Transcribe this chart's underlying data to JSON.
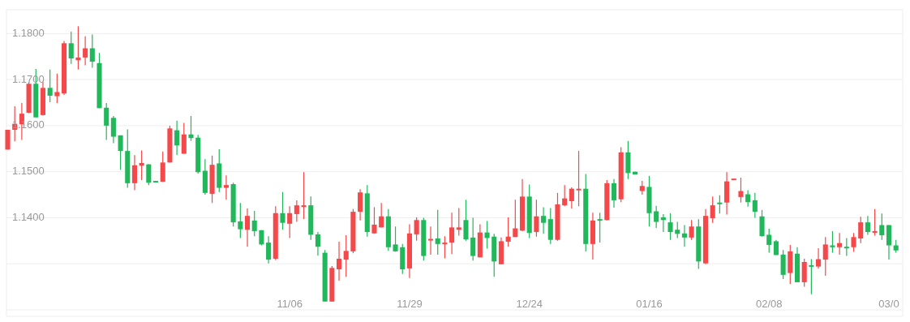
{
  "chart_data": {
    "type": "candlestick",
    "categories": [
      null,
      null,
      null,
      null,
      null,
      null,
      null,
      null,
      null,
      null,
      null,
      null,
      null,
      null,
      null,
      null,
      null,
      null,
      null,
      null,
      null,
      null,
      null,
      null,
      null,
      null,
      null,
      null,
      null,
      null,
      null,
      null,
      null,
      null,
      null,
      null,
      null,
      null,
      null,
      null,
      "11/06",
      null,
      null,
      null,
      null,
      null,
      null,
      null,
      null,
      null,
      null,
      null,
      null,
      null,
      null,
      null,
      null,
      "11/29",
      null,
      null,
      null,
      null,
      null,
      null,
      null,
      null,
      null,
      null,
      null,
      null,
      null,
      null,
      null,
      null,
      "12/24",
      null,
      null,
      null,
      null,
      null,
      null,
      null,
      null,
      null,
      null,
      null,
      null,
      null,
      null,
      null,
      null,
      "01/16",
      null,
      null,
      null,
      null,
      null,
      null,
      null,
      null,
      null,
      null,
      null,
      null,
      null,
      null,
      null,
      null,
      "02/08",
      null,
      null,
      null,
      null,
      null,
      null,
      null,
      null,
      null,
      null,
      null,
      null,
      null,
      null,
      null,
      null,
      "03/0",
      null
    ],
    "ohlc": [
      [
        1.1548,
        1.1591,
        1.1548,
        1.1591
      ],
      [
        1.1591,
        1.1642,
        1.1566,
        1.1604
      ],
      [
        1.1603,
        1.1649,
        1.1569,
        1.1626
      ],
      [
        1.1628,
        1.1694,
        1.1627,
        1.1691
      ],
      [
        1.1691,
        1.1723,
        1.1618,
        1.1618
      ],
      [
        1.1623,
        1.1696,
        1.1622,
        1.1682
      ],
      [
        1.1682,
        1.1722,
        1.1651,
        1.1665
      ],
      [
        1.1664,
        1.1713,
        1.1649,
        1.1673
      ],
      [
        1.167,
        1.1784,
        1.1667,
        1.1779
      ],
      [
        1.1779,
        1.1804,
        1.1734,
        1.1746
      ],
      [
        1.1742,
        1.1816,
        1.1722,
        1.1748
      ],
      [
        1.1748,
        1.1794,
        1.1731,
        1.1768
      ],
      [
        1.1768,
        1.1798,
        1.1726,
        1.1739
      ],
      [
        1.1736,
        1.1758,
        1.1638,
        1.1638
      ],
      [
        1.1639,
        1.1649,
        1.1569,
        1.16
      ],
      [
        1.1617,
        1.1621,
        1.1562,
        1.1576
      ],
      [
        1.1579,
        1.1579,
        1.1504,
        1.1545
      ],
      [
        1.1545,
        1.1592,
        1.1465,
        1.1475
      ],
      [
        1.1475,
        1.1536,
        1.146,
        1.1514
      ],
      [
        1.1513,
        1.1546,
        1.1482,
        1.1519
      ],
      [
        1.1516,
        1.1516,
        1.1471,
        1.1476
      ],
      [
        1.148,
        1.148,
        1.1479,
        1.1479
      ],
      [
        1.1478,
        1.1544,
        1.1478,
        1.152
      ],
      [
        1.152,
        1.16,
        1.152,
        1.1594
      ],
      [
        1.159,
        1.1611,
        1.1536,
        1.1557
      ],
      [
        1.1539,
        1.1606,
        1.1539,
        1.1581
      ],
      [
        1.1581,
        1.1621,
        1.1567,
        1.1573
      ],
      [
        1.1574,
        1.158,
        1.1496,
        1.1499
      ],
      [
        1.1502,
        1.1527,
        1.145,
        1.1454
      ],
      [
        1.1452,
        1.1535,
        1.1432,
        1.1515
      ],
      [
        1.1518,
        1.1549,
        1.1456,
        1.1465
      ],
      [
        1.1465,
        1.1492,
        1.1439,
        1.1471
      ],
      [
        1.1473,
        1.1476,
        1.1381,
        1.139
      ],
      [
        1.1392,
        1.1432,
        1.1356,
        1.1375
      ],
      [
        1.1374,
        1.142,
        1.1337,
        1.1404
      ],
      [
        1.1394,
        1.1415,
        1.136,
        1.1371
      ],
      [
        1.1373,
        1.1373,
        1.134,
        1.1342
      ],
      [
        1.1346,
        1.136,
        1.1301,
        1.1309
      ],
      [
        1.1311,
        1.1425,
        1.1308,
        1.141
      ],
      [
        1.141,
        1.1456,
        1.1374,
        1.1389
      ],
      [
        1.1387,
        1.1425,
        1.1356,
        1.141
      ],
      [
        1.1408,
        1.1438,
        1.1391,
        1.1427
      ],
      [
        1.1424,
        1.1499,
        1.1397,
        1.1427
      ],
      [
        1.1427,
        1.1446,
        1.1352,
        1.1363
      ],
      [
        1.1364,
        1.1369,
        1.1318,
        1.1337
      ],
      [
        1.1324,
        1.133,
        1.1218,
        1.1218
      ],
      [
        1.1218,
        1.1295,
        1.1218,
        1.1291
      ],
      [
        1.1288,
        1.1348,
        1.1263,
        1.1311
      ],
      [
        1.1309,
        1.1362,
        1.1272,
        1.1328
      ],
      [
        1.1327,
        1.1419,
        1.1323,
        1.1413
      ],
      [
        1.1413,
        1.1462,
        1.1394,
        1.1455
      ],
      [
        1.1453,
        1.1471,
        1.1359,
        1.1369
      ],
      [
        1.1366,
        1.1423,
        1.1365,
        1.1385
      ],
      [
        1.1379,
        1.1432,
        1.1379,
        1.1403
      ],
      [
        1.1403,
        1.1419,
        1.1328,
        1.1336
      ],
      [
        1.1342,
        1.1381,
        1.1326,
        1.1327
      ],
      [
        1.1336,
        1.1343,
        1.1278,
        1.1288
      ],
      [
        1.129,
        1.1386,
        1.1269,
        1.1366
      ],
      [
        1.1364,
        1.1401,
        1.135,
        1.1395
      ],
      [
        1.1395,
        1.14,
        1.1307,
        1.1317
      ],
      [
        1.1352,
        1.1381,
        1.132,
        1.1354
      ],
      [
        1.1355,
        1.1417,
        1.132,
        1.1343
      ],
      [
        1.1343,
        1.136,
        1.1312,
        1.1346
      ],
      [
        1.1346,
        1.1411,
        1.1321,
        1.1379
      ],
      [
        1.1374,
        1.1421,
        1.1361,
        1.1379
      ],
      [
        1.1395,
        1.1439,
        1.135,
        1.1353
      ],
      [
        1.1357,
        1.14,
        1.1307,
        1.1317
      ],
      [
        1.1314,
        1.1386,
        1.1314,
        1.1368
      ],
      [
        1.1368,
        1.1393,
        1.1333,
        1.1356
      ],
      [
        1.1359,
        1.1365,
        1.1272,
        1.1305
      ],
      [
        1.1299,
        1.1357,
        1.1299,
        1.1349
      ],
      [
        1.1348,
        1.1401,
        1.1337,
        1.1359
      ],
      [
        1.1358,
        1.1439,
        1.1358,
        1.1377
      ],
      [
        1.1372,
        1.1484,
        1.1371,
        1.1446
      ],
      [
        1.1446,
        1.1472,
        1.1356,
        1.1367
      ],
      [
        1.1369,
        1.1439,
        1.1359,
        1.1403
      ],
      [
        1.1404,
        1.1423,
        1.1365,
        1.1389
      ],
      [
        1.1397,
        1.1421,
        1.1343,
        1.1352
      ],
      [
        1.1352,
        1.1454,
        1.135,
        1.1429
      ],
      [
        1.1427,
        1.1471,
        1.1425,
        1.1442
      ],
      [
        1.1436,
        1.1466,
        1.142,
        1.1463
      ],
      [
        1.1462,
        1.1545,
        1.1425,
        1.1463
      ],
      [
        1.1463,
        1.1495,
        1.1327,
        1.1343
      ],
      [
        1.1343,
        1.1411,
        1.1309,
        1.1394
      ],
      [
        1.1397,
        1.1411,
        1.1346,
        1.1394
      ],
      [
        1.1395,
        1.1482,
        1.1394,
        1.1475
      ],
      [
        1.1475,
        1.1484,
        1.1422,
        1.1438
      ],
      [
        1.144,
        1.1553,
        1.1434,
        1.1542
      ],
      [
        1.1542,
        1.1567,
        1.1484,
        1.1497
      ],
      [
        1.15,
        1.15,
        1.1494,
        1.1494
      ],
      [
        1.1458,
        1.148,
        1.145,
        1.1469
      ],
      [
        1.1467,
        1.1491,
        1.1381,
        1.141
      ],
      [
        1.1414,
        1.1426,
        1.1378,
        1.1391
      ],
      [
        1.1401,
        1.1408,
        1.1369,
        1.1395
      ],
      [
        1.139,
        1.141,
        1.1352,
        1.1369
      ],
      [
        1.1374,
        1.1391,
        1.1356,
        1.1365
      ],
      [
        1.1366,
        1.1384,
        1.1337,
        1.1357
      ],
      [
        1.1357,
        1.1395,
        1.1352,
        1.1381
      ],
      [
        1.1381,
        1.1397,
        1.1289,
        1.1305
      ],
      [
        1.1301,
        1.1419,
        1.1299,
        1.1404
      ],
      [
        1.1399,
        1.1446,
        1.1389,
        1.1427
      ],
      [
        1.1433,
        1.1449,
        1.1409,
        1.143
      ],
      [
        1.1433,
        1.1499,
        1.1407,
        1.1479
      ],
      [
        1.1484,
        1.1485,
        1.1484,
        1.1485
      ],
      [
        1.1445,
        1.1487,
        1.1433,
        1.1458
      ],
      [
        1.1451,
        1.146,
        1.1424,
        1.1434
      ],
      [
        1.1438,
        1.1454,
        1.14,
        1.1413
      ],
      [
        1.1403,
        1.1417,
        1.1359,
        1.136
      ],
      [
        1.1363,
        1.1376,
        1.1324,
        1.1341
      ],
      [
        1.1349,
        1.1352,
        1.1319,
        1.1319
      ],
      [
        1.132,
        1.133,
        1.1267,
        1.1276
      ],
      [
        1.128,
        1.1341,
        1.1256,
        1.1327
      ],
      [
        1.1322,
        1.1336,
        1.126,
        1.126
      ],
      [
        1.126,
        1.1311,
        1.125,
        1.1304
      ],
      [
        1.1297,
        1.131,
        1.1234,
        1.1295
      ],
      [
        1.1294,
        1.1334,
        1.129,
        1.131
      ],
      [
        1.1309,
        1.1358,
        1.1274,
        1.1342
      ],
      [
        1.134,
        1.1371,
        1.1324,
        1.1336
      ],
      [
        1.1336,
        1.1367,
        1.132,
        1.1345
      ],
      [
        1.1337,
        1.1356,
        1.1317,
        1.1334
      ],
      [
        1.1336,
        1.1367,
        1.1326,
        1.1358
      ],
      [
        1.1355,
        1.1402,
        1.1345,
        1.139
      ],
      [
        1.139,
        1.1404,
        1.1363,
        1.1369
      ],
      [
        1.1368,
        1.1419,
        1.1361,
        1.1371
      ],
      [
        1.1384,
        1.1409,
        1.1352,
        1.1362
      ],
      [
        1.1384,
        1.1384,
        1.1309,
        1.134
      ],
      [
        1.134,
        1.1352,
        1.1324,
        1.1329
      ]
    ],
    "colors": [
      "#f5484a",
      "#f5484a",
      "#f5484a",
      "#f5484a",
      "#20b85a",
      "#f5484a",
      "#20b85a",
      "#f5484a",
      "#f5484a",
      "#20b85a",
      "#f5484a",
      "#f5484a",
      "#20b85a",
      "#20b85a",
      "#20b85a",
      "#20b85a",
      "#20b85a",
      "#20b85a",
      "#f5484a",
      "#f5484a",
      "#20b85a",
      "#20b85a",
      "#f5484a",
      "#f5484a",
      "#20b85a",
      "#f5484a",
      "#20b85a",
      "#20b85a",
      "#20b85a",
      "#f5484a",
      "#20b85a",
      "#f5484a",
      "#20b85a",
      "#20b85a",
      "#f5484a",
      "#20b85a",
      "#20b85a",
      "#20b85a",
      "#f5484a",
      "#20b85a",
      "#f5484a",
      "#f5484a",
      "#f5484a",
      "#20b85a",
      "#20b85a",
      "#20b85a",
      "#f5484a",
      "#f5484a",
      "#f5484a",
      "#f5484a",
      "#f5484a",
      "#20b85a",
      "#f5484a",
      "#f5484a",
      "#20b85a",
      "#20b85a",
      "#20b85a",
      "#f5484a",
      "#f5484a",
      "#20b85a",
      "#f5484a",
      "#20b85a",
      "#f5484a",
      "#f5484a",
      "#f5484a",
      "#20b85a",
      "#20b85a",
      "#f5484a",
      "#20b85a",
      "#20b85a",
      "#f5484a",
      "#f5484a",
      "#f5484a",
      "#f5484a",
      "#20b85a",
      "#f5484a",
      "#20b85a",
      "#20b85a",
      "#f5484a",
      "#f5484a",
      "#f5484a",
      "#f5484a",
      "#20b85a",
      "#f5484a",
      "#20b85a",
      "#f5484a",
      "#20b85a",
      "#f5484a",
      "#20b85a",
      "#20b85a",
      "#f5484a",
      "#20b85a",
      "#20b85a",
      "#20b85a",
      "#20b85a",
      "#20b85a",
      "#20b85a",
      "#f5484a",
      "#20b85a",
      "#f5484a",
      "#f5484a",
      "#20b85a",
      "#f5484a",
      "#f5484a",
      "#f5484a",
      "#20b85a",
      "#20b85a",
      "#20b85a",
      "#20b85a",
      "#20b85a",
      "#20b85a",
      "#f5484a",
      "#20b85a",
      "#f5484a",
      "#20b85a",
      "#f5484a",
      "#f5484a",
      "#20b85a",
      "#f5484a",
      "#20b85a",
      "#f5484a",
      "#f5484a",
      "#20b85a",
      "#f5484a",
      "#20b85a",
      "#20b85a",
      "#20b85a"
    ],
    "ylim": [
      1.12,
      1.185
    ],
    "yticks": [
      {
        "value": 1.12,
        "label": null
      },
      {
        "value": 1.13,
        "label": null
      },
      {
        "value": 1.14,
        "label": "1.1400"
      },
      {
        "value": 1.15,
        "label": "1.1500"
      },
      {
        "value": 1.16,
        "label": "1.1600"
      },
      {
        "value": 1.17,
        "label": "1.1700"
      },
      {
        "value": 1.18,
        "label": "1.1800"
      }
    ],
    "grid": "y"
  }
}
